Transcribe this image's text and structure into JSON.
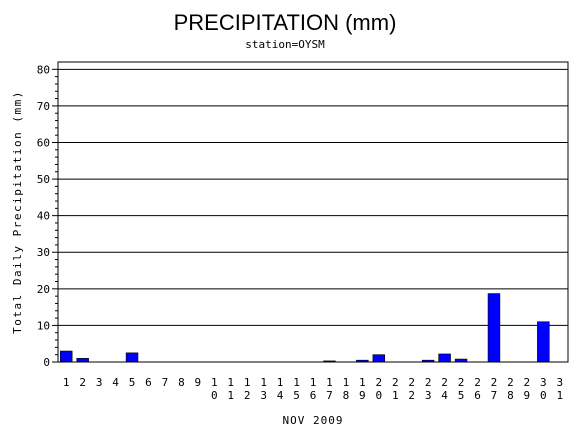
{
  "chart_data": {
    "type": "bar",
    "title": "PRECIPITATION (mm)",
    "subtitle": "station=OYSM",
    "ylabel": "Total Daily Precipitation (mm)",
    "xlabel": "NOV 2009",
    "ylim": [
      0,
      82
    ],
    "yticks": [
      0,
      10,
      20,
      30,
      40,
      50,
      60,
      70,
      80
    ],
    "grid": true,
    "categories": [
      "1",
      "2",
      "3",
      "4",
      "5",
      "6",
      "7",
      "8",
      "9",
      "10",
      "11",
      "12",
      "13",
      "14",
      "15",
      "16",
      "17",
      "18",
      "19",
      "20",
      "21",
      "22",
      "23",
      "24",
      "25",
      "26",
      "27",
      "28",
      "29",
      "30",
      "31"
    ],
    "values": [
      3.0,
      1.0,
      0,
      0,
      2.5,
      0,
      0,
      0,
      0,
      0,
      0,
      0,
      0,
      0,
      0,
      0,
      0.3,
      0,
      0.5,
      2.0,
      0,
      0,
      0.5,
      2.2,
      0.8,
      0,
      18.7,
      0,
      0,
      11.0,
      0
    ],
    "bar_color": "#0000ff"
  }
}
